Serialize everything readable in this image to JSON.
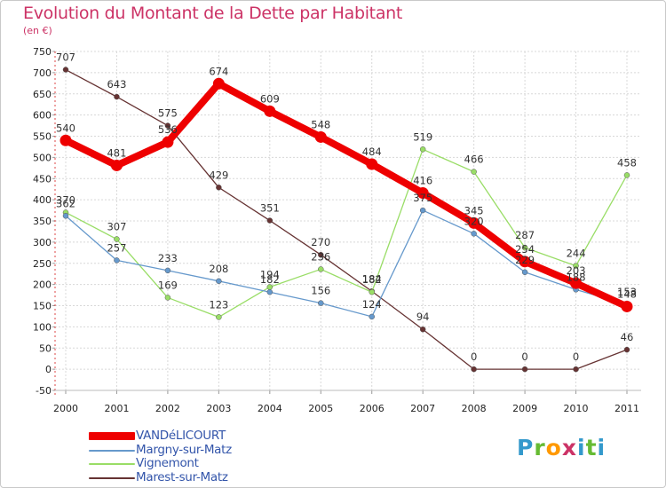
{
  "title": "Evolution du Montant de la Dette par Habitant",
  "subtitle": "(en €)",
  "logo": {
    "text": "Proxiti",
    "letter_colors": [
      "#3399cc",
      "#66bb33",
      "#ff9900",
      "#cc3366",
      "#3399cc",
      "#66bb33",
      "#3399cc"
    ]
  },
  "chart_data": {
    "type": "line",
    "title": "Evolution du Montant de la Dette par Habitant",
    "subtitle": "(en €)",
    "xlabel": "",
    "ylabel": "",
    "x": [
      "2000",
      "2001",
      "2002",
      "2003",
      "2004",
      "2005",
      "2006",
      "2007",
      "2008",
      "2009",
      "2010",
      "2011"
    ],
    "ylim": [
      -50,
      750
    ],
    "yticks": [
      -50,
      0,
      50,
      100,
      150,
      200,
      250,
      300,
      350,
      400,
      450,
      500,
      550,
      600,
      650,
      700,
      750
    ],
    "grid": true,
    "legend": "bottom-left",
    "series": [
      {
        "name": "Marest-sur-Matz",
        "color": "#663333",
        "values": [
          707,
          643,
          575,
          429,
          351,
          270,
          184,
          94,
          0,
          0,
          0,
          46
        ]
      },
      {
        "name": "Vignemont",
        "color": "#99dd66",
        "values": [
          370,
          307,
          169,
          123,
          194,
          236,
          182,
          519,
          466,
          287,
          244,
          458
        ]
      },
      {
        "name": "Margny-sur-Matz",
        "color": "#6699cc",
        "values": [
          362,
          257,
          233,
          208,
          182,
          156,
          124,
          375,
          320,
          229,
          188,
          153
        ]
      },
      {
        "name": "VANDéLICOURT",
        "color": "#ee0000",
        "values": [
          540,
          481,
          536,
          674,
          609,
          548,
          484,
          416,
          345,
          254,
          203,
          148
        ]
      }
    ],
    "legend_order": [
      "VANDéLICOURT",
      "Margny-sur-Matz",
      "Vignemont",
      "Marest-sur-Matz"
    ]
  }
}
